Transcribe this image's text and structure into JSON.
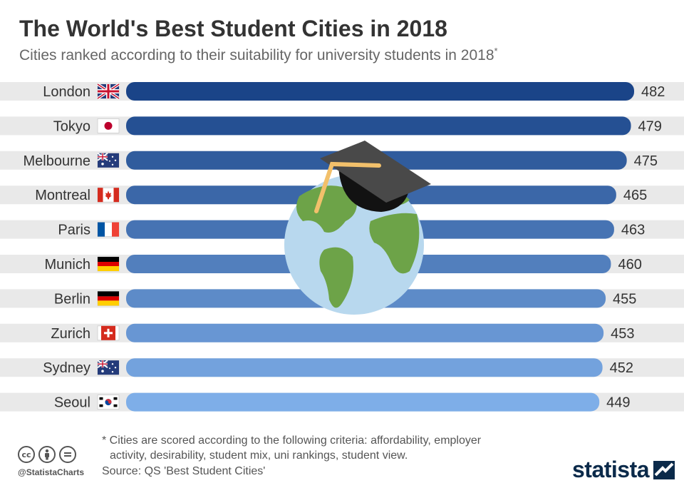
{
  "title": "The World's Best Student Cities in 2018",
  "subtitle": "Cities ranked according to their suitability for university students in 2018",
  "subtitle_marker": "*",
  "footnote_line1": "* Cities are scored according to the following criteria: affordability, employer",
  "footnote_line2": "activity, desirability, student mix, uni rankings, student view.",
  "source": "Source: QS 'Best Student Cities'",
  "handle": "@StatistaCharts",
  "brand": "statista",
  "colors": {
    "bar_top": "#1a4488",
    "bar_bottom": "#7eaee8",
    "track": "#e9e9e9"
  },
  "cc_icons": [
    "cc",
    "by",
    "nd"
  ],
  "chart_data": {
    "type": "bar",
    "orientation": "horizontal",
    "categories": [
      "London",
      "Tokyo",
      "Melbourne",
      "Montreal",
      "Paris",
      "Munich",
      "Berlin",
      "Zurich",
      "Sydney",
      "Seoul"
    ],
    "flags": [
      "flag-uk-icon",
      "flag-japan-icon",
      "flag-australia-icon",
      "flag-canada-icon",
      "flag-france-icon",
      "flag-germany-icon",
      "flag-germany-icon",
      "flag-switzerland-icon",
      "flag-australia-icon",
      "flag-south-korea-icon"
    ],
    "values": [
      482,
      479,
      475,
      465,
      463,
      460,
      455,
      453,
      452,
      449
    ],
    "xlim": [
      0,
      482
    ],
    "grid": false,
    "legend": "none",
    "data_labels": true,
    "decoration": "globe-with-graduation-cap"
  }
}
